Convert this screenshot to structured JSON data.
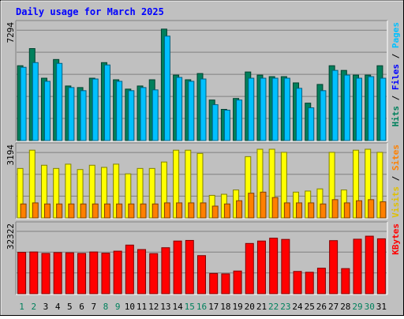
{
  "chart_data": {
    "title": "Daily usage for March 2025",
    "type": "bar",
    "categories": [
      "1",
      "2",
      "3",
      "4",
      "5",
      "6",
      "7",
      "8",
      "9",
      "10",
      "11",
      "12",
      "13",
      "14",
      "15",
      "16",
      "17",
      "18",
      "19",
      "20",
      "21",
      "22",
      "23",
      "24",
      "25",
      "26",
      "27",
      "28",
      "29",
      "30",
      "31"
    ],
    "weekend_days": [
      "1",
      "2",
      "8",
      "9",
      "15",
      "16",
      "22",
      "23",
      "29",
      "30"
    ],
    "panels": [
      {
        "id": "hits",
        "ymax_label": "7294",
        "ylim": [
          0,
          7294
        ],
        "legend": [
          {
            "text": "Hits",
            "color": "#00805c"
          },
          {
            "text": " / ",
            "color": "#000000"
          },
          {
            "text": "Files",
            "color": "#0000ff"
          },
          {
            "text": " / ",
            "color": "#000000"
          },
          {
            "text": "Pages",
            "color": "#00c0ff"
          }
        ],
        "series": [
          {
            "name": "Hits",
            "color": "#00805c",
            "values": [
              4800,
              5900,
              4000,
              5200,
              3500,
              3400,
              4000,
              5000,
              3900,
              3300,
              3500,
              3900,
              7150,
              4200,
              3900,
              4300,
              2600,
              2000,
              2700,
              4400,
              4200,
              4100,
              4100,
              3700,
              2400,
              3600,
              4800,
              4500,
              4200,
              4200,
              4800
            ]
          },
          {
            "name": "Files",
            "color": "#00c0ff",
            "values": [
              4700,
              5000,
              3800,
              4950,
              3400,
              3200,
              3950,
              4850,
              3800,
              3200,
              3400,
              3250,
              6700,
              4050,
              3800,
              3950,
              2300,
              1950,
              2600,
              4000,
              4000,
              4000,
              4000,
              3350,
              2100,
              3200,
              4500,
              4200,
              4000,
              4100,
              4000
            ]
          }
        ]
      },
      {
        "id": "visits",
        "ymax_label": "3194",
        "ylim": [
          0,
          3194
        ],
        "legend": [
          {
            "text": "Visits",
            "color": "#e0c000"
          },
          {
            "text": " / ",
            "color": "#000000"
          },
          {
            "text": "Sites",
            "color": "#ff8000"
          }
        ],
        "series": [
          {
            "name": "Visits",
            "color": "#ffff00",
            "values": [
              2300,
              3150,
              2450,
              2300,
              2500,
              2250,
              2450,
              2350,
              2500,
              2050,
              2300,
              2300,
              2600,
              3150,
              3150,
              3000,
              1050,
              1100,
              1300,
              2850,
              3250,
              3250,
              3050,
              1200,
              1250,
              1350,
              3050,
              1300,
              3150,
              3300,
              3050
            ]
          },
          {
            "name": "Sites",
            "color": "#ff8000",
            "values": [
              650,
              700,
              650,
              650,
              650,
              650,
              650,
              650,
              650,
              650,
              650,
              650,
              700,
              700,
              700,
              700,
              550,
              650,
              800,
              1150,
              1200,
              950,
              700,
              700,
              700,
              650,
              850,
              700,
              800,
              850,
              750
            ]
          }
        ]
      },
      {
        "id": "kbytes",
        "ymax_label": "32322",
        "ylim": [
          0,
          32322
        ],
        "legend": [
          {
            "text": "KBytes",
            "color": "#ff0000"
          }
        ],
        "series": [
          {
            "name": "KBytes",
            "color": "#ff0000",
            "values": [
              20400,
              20600,
              19900,
              20300,
              20200,
              19900,
              20600,
              20000,
              21000,
              24000,
              21800,
              19800,
              22700,
              26000,
              26300,
              18800,
              10000,
              9800,
              11200,
              24800,
              26000,
              27400,
              26800,
              11000,
              10600,
              12600,
              26200,
              12400,
              26900,
              28400,
              27100
            ]
          }
        ]
      }
    ]
  }
}
